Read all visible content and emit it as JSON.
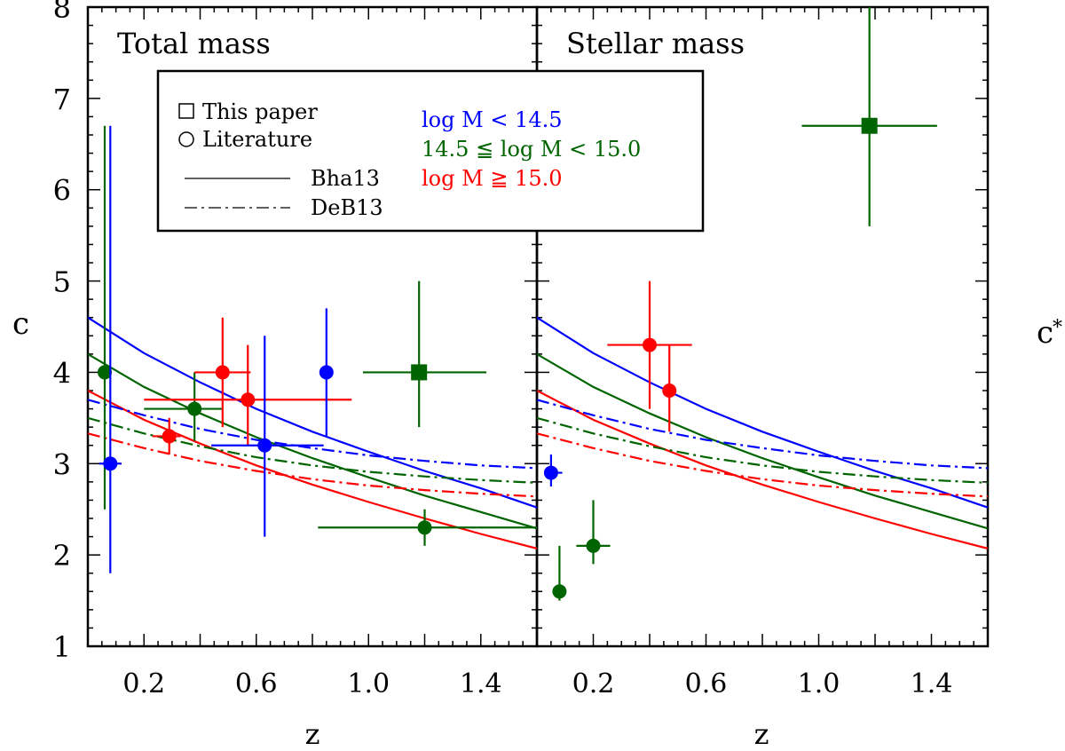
{
  "colors": {
    "low": "#0000ff",
    "mid": "#006400",
    "high": "#ff0000",
    "axis": "#000000"
  },
  "y_axis": {
    "label": "c",
    "ylim": [
      1,
      8
    ],
    "ticks": [
      {
        "value": 1,
        "label": "1"
      },
      {
        "value": 2,
        "label": "2"
      },
      {
        "value": 3,
        "label": "3"
      },
      {
        "value": 4,
        "label": "4"
      },
      {
        "value": 5,
        "label": "5"
      },
      {
        "value": 6,
        "label": "6"
      },
      {
        "value": 7,
        "label": "7"
      },
      {
        "value": 8,
        "label": "8"
      }
    ],
    "right_label": "c",
    "right_label_sub": "*"
  },
  "legend": {
    "square_label": "This paper",
    "circle_label": "Literature",
    "solid_label": "Bha13",
    "dashdot_label": "DeB13",
    "low_label": "log M < 14.5",
    "mid_label": "14.5 ≦ log M < 15.0",
    "high_label": "log M ≧ 15.0"
  },
  "chart_data": [
    {
      "type": "scatter",
      "title": "Total mass",
      "xlabel": "z",
      "ylabel": "c",
      "xlim": [
        0,
        1.6
      ],
      "ylim": [
        1,
        8
      ],
      "x_ticks": [
        {
          "value": 0.2,
          "label": "0.2"
        },
        {
          "value": 0.6,
          "label": "0.6"
        },
        {
          "value": 1.0,
          "label": "1.0"
        },
        {
          "value": 1.4,
          "label": "1.4"
        }
      ],
      "points": [
        {
          "group": "mid",
          "marker": "circle",
          "x": 0.06,
          "y": 4.0,
          "xerr": [
            0.0,
            0.0
          ],
          "yerr": [
            1.5,
            2.7
          ]
        },
        {
          "group": "low",
          "marker": "circle",
          "x": 0.08,
          "y": 3.0,
          "xerr": [
            0.04,
            0.04
          ],
          "yerr": [
            1.2,
            3.7
          ]
        },
        {
          "group": "high",
          "marker": "circle",
          "x": 0.29,
          "y": 3.3,
          "xerr": [
            0.06,
            0.04
          ],
          "yerr": [
            0.2,
            0.2
          ]
        },
        {
          "group": "mid",
          "marker": "circle",
          "x": 0.38,
          "y": 3.6,
          "xerr": [
            0.18,
            0.1
          ],
          "yerr": [
            0.35,
            0.4
          ]
        },
        {
          "group": "high",
          "marker": "circle",
          "x": 0.48,
          "y": 4.0,
          "xerr": [
            0.1,
            0.1
          ],
          "yerr": [
            0.6,
            0.6
          ]
        },
        {
          "group": "high",
          "marker": "circle",
          "x": 0.57,
          "y": 3.7,
          "xerr": [
            0.37,
            0.37
          ],
          "yerr": [
            0.5,
            0.6
          ]
        },
        {
          "group": "low",
          "marker": "circle",
          "x": 0.63,
          "y": 3.2,
          "xerr": [
            0.19,
            0.21
          ],
          "yerr": [
            1.0,
            1.2
          ]
        },
        {
          "group": "low",
          "marker": "circle",
          "x": 0.85,
          "y": 4.0,
          "xerr": [
            0.0,
            0.0
          ],
          "yerr": [
            0.7,
            0.7
          ]
        },
        {
          "group": "mid",
          "marker": "square",
          "x": 1.18,
          "y": 4.0,
          "xerr": [
            0.2,
            0.24
          ],
          "yerr": [
            0.6,
            1.0
          ]
        },
        {
          "group": "mid",
          "marker": "circle",
          "x": 1.2,
          "y": 2.3,
          "xerr": [
            0.38,
            0.4
          ],
          "yerr": [
            0.2,
            0.2
          ]
        }
      ],
      "curves": [
        {
          "name": "Bha13 low",
          "group": "low",
          "style": "solid",
          "x": [
            0,
            0.2,
            0.4,
            0.6,
            0.8,
            1.0,
            1.2,
            1.4,
            1.6
          ],
          "y": [
            4.6,
            4.21,
            3.89,
            3.6,
            3.35,
            3.13,
            2.92,
            2.73,
            2.52
          ]
        },
        {
          "name": "Bha13 mid",
          "group": "mid",
          "style": "solid",
          "x": [
            0,
            0.2,
            0.4,
            0.6,
            0.8,
            1.0,
            1.2,
            1.4,
            1.6
          ],
          "y": [
            4.2,
            3.84,
            3.55,
            3.29,
            3.06,
            2.85,
            2.65,
            2.47,
            2.29
          ]
        },
        {
          "name": "Bha13 high",
          "group": "high",
          "style": "solid",
          "x": [
            0,
            0.2,
            0.4,
            0.6,
            0.8,
            1.0,
            1.2,
            1.4,
            1.6
          ],
          "y": [
            3.8,
            3.48,
            3.22,
            2.98,
            2.77,
            2.58,
            2.4,
            2.23,
            2.07
          ]
        },
        {
          "name": "DeB13 low",
          "group": "low",
          "style": "dashdot",
          "x": [
            0,
            0.2,
            0.4,
            0.6,
            0.8,
            1.0,
            1.2,
            1.4,
            1.6
          ],
          "y": [
            3.7,
            3.53,
            3.38,
            3.26,
            3.17,
            3.09,
            3.03,
            2.98,
            2.95
          ]
        },
        {
          "name": "DeB13 mid",
          "group": "mid",
          "style": "dashdot",
          "x": [
            0,
            0.2,
            0.4,
            0.6,
            0.8,
            1.0,
            1.2,
            1.4,
            1.6
          ],
          "y": [
            3.5,
            3.33,
            3.19,
            3.07,
            2.98,
            2.91,
            2.86,
            2.82,
            2.79
          ]
        },
        {
          "name": "DeB13 high",
          "group": "high",
          "style": "dashdot",
          "x": [
            0,
            0.2,
            0.4,
            0.6,
            0.8,
            1.0,
            1.2,
            1.4,
            1.6
          ],
          "y": [
            3.33,
            3.17,
            3.03,
            2.92,
            2.83,
            2.76,
            2.71,
            2.67,
            2.64
          ]
        }
      ]
    },
    {
      "type": "scatter",
      "title": "Stellar mass",
      "xlabel": "z",
      "ylabel": "c*",
      "xlim": [
        0,
        1.6
      ],
      "ylim": [
        1,
        8
      ],
      "x_ticks": [
        {
          "value": 0.2,
          "label": "0.2"
        },
        {
          "value": 0.6,
          "label": "0.6"
        },
        {
          "value": 1.0,
          "label": "1.0"
        },
        {
          "value": 1.4,
          "label": "1.4"
        }
      ],
      "points": [
        {
          "group": "low",
          "marker": "circle",
          "x": 0.05,
          "y": 2.9,
          "xerr": [
            0.02,
            0.04
          ],
          "yerr": [
            0.15,
            0.2
          ]
        },
        {
          "group": "mid",
          "marker": "circle",
          "x": 0.08,
          "y": 1.6,
          "xerr": [
            0.02,
            0.02
          ],
          "yerr": [
            0.1,
            0.5
          ]
        },
        {
          "group": "mid",
          "marker": "circle",
          "x": 0.2,
          "y": 2.1,
          "xerr": [
            0.06,
            0.06
          ],
          "yerr": [
            0.2,
            0.5
          ]
        },
        {
          "group": "high",
          "marker": "circle",
          "x": 0.4,
          "y": 4.3,
          "xerr": [
            0.15,
            0.15
          ],
          "yerr": [
            0.7,
            0.7
          ]
        },
        {
          "group": "high",
          "marker": "circle",
          "x": 0.47,
          "y": 3.8,
          "xerr": [
            0.0,
            0.0
          ],
          "yerr": [
            0.45,
            0.5
          ]
        },
        {
          "group": "mid",
          "marker": "square",
          "x": 1.18,
          "y": 6.7,
          "xerr": [
            0.24,
            0.24
          ],
          "yerr": [
            1.1,
            1.3
          ]
        }
      ],
      "curves": [
        {
          "name": "Bha13 low",
          "group": "low",
          "style": "solid",
          "x": [
            0,
            0.2,
            0.4,
            0.6,
            0.8,
            1.0,
            1.2,
            1.4,
            1.6
          ],
          "y": [
            4.6,
            4.21,
            3.89,
            3.6,
            3.35,
            3.13,
            2.92,
            2.73,
            2.52
          ]
        },
        {
          "name": "Bha13 mid",
          "group": "mid",
          "style": "solid",
          "x": [
            0,
            0.2,
            0.4,
            0.6,
            0.8,
            1.0,
            1.2,
            1.4,
            1.6
          ],
          "y": [
            4.2,
            3.84,
            3.55,
            3.29,
            3.06,
            2.85,
            2.65,
            2.47,
            2.29
          ]
        },
        {
          "name": "Bha13 high",
          "group": "high",
          "style": "solid",
          "x": [
            0,
            0.2,
            0.4,
            0.6,
            0.8,
            1.0,
            1.2,
            1.4,
            1.6
          ],
          "y": [
            3.8,
            3.48,
            3.22,
            2.98,
            2.77,
            2.58,
            2.4,
            2.23,
            2.07
          ]
        },
        {
          "name": "DeB13 low",
          "group": "low",
          "style": "dashdot",
          "x": [
            0,
            0.2,
            0.4,
            0.6,
            0.8,
            1.0,
            1.2,
            1.4,
            1.6
          ],
          "y": [
            3.7,
            3.53,
            3.38,
            3.26,
            3.17,
            3.09,
            3.03,
            2.98,
            2.95
          ]
        },
        {
          "name": "DeB13 mid",
          "group": "mid",
          "style": "dashdot",
          "x": [
            0,
            0.2,
            0.4,
            0.6,
            0.8,
            1.0,
            1.2,
            1.4,
            1.6
          ],
          "y": [
            3.5,
            3.33,
            3.19,
            3.07,
            2.98,
            2.91,
            2.86,
            2.82,
            2.79
          ]
        },
        {
          "name": "DeB13 high",
          "group": "high",
          "style": "dashdot",
          "x": [
            0,
            0.2,
            0.4,
            0.6,
            0.8,
            1.0,
            1.2,
            1.4,
            1.6
          ],
          "y": [
            3.33,
            3.17,
            3.03,
            2.92,
            2.83,
            2.76,
            2.71,
            2.67,
            2.64
          ]
        }
      ]
    }
  ]
}
